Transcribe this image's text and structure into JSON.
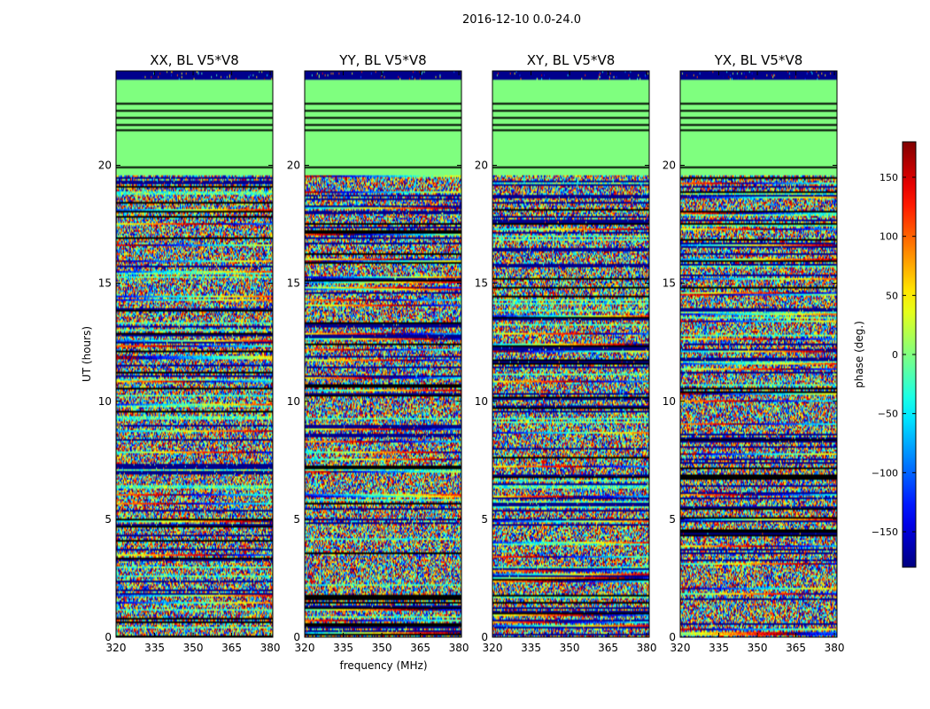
{
  "figure_title": "2016-12-10 0.0-24.0",
  "chart_data": [
    {
      "type": "heatmap",
      "title": "XX, BL V5*V8",
      "xlabel": "",
      "ylabel": "UT (hours)",
      "xlim": [
        320,
        381
      ],
      "ylim": [
        0,
        24
      ],
      "x_ticks": [
        320,
        335,
        350,
        365,
        380
      ],
      "y_ticks": [
        0,
        5,
        10,
        15,
        20
      ],
      "flagged_above_hour": 19.6
    },
    {
      "type": "heatmap",
      "title": "YY, BL V5*V8",
      "xlabel": "frequency (MHz)",
      "ylabel": "",
      "xlim": [
        320,
        381
      ],
      "ylim": [
        0,
        24
      ],
      "x_ticks": [
        320,
        335,
        350,
        365,
        380
      ],
      "y_ticks": [
        0,
        5,
        10,
        15,
        20
      ],
      "flagged_above_hour": 19.6
    },
    {
      "type": "heatmap",
      "title": "XY, BL V5*V8",
      "xlabel": "",
      "ylabel": "",
      "xlim": [
        320,
        381
      ],
      "ylim": [
        0,
        24
      ],
      "x_ticks": [
        320,
        335,
        350,
        365,
        380
      ],
      "y_ticks": [
        0,
        5,
        10,
        15,
        20
      ],
      "flagged_above_hour": 19.6
    },
    {
      "type": "heatmap",
      "title": "YX, BL V5*V8",
      "xlabel": "",
      "ylabel": "",
      "xlim": [
        320,
        381
      ],
      "ylim": [
        0,
        24
      ],
      "x_ticks": [
        320,
        335,
        350,
        365,
        380
      ],
      "y_ticks": [
        0,
        5,
        10,
        15,
        20
      ],
      "flagged_above_hour": 19.6
    }
  ],
  "colorbar": {
    "label": "phase (deg.)",
    "range": [
      -180,
      180
    ],
    "ticks": [
      150,
      100,
      50,
      0,
      -50,
      -100,
      -150
    ],
    "tick_labels": [
      "150",
      "100",
      "50",
      "0",
      "−50",
      "−100",
      "−150"
    ],
    "colormap": "jet"
  }
}
